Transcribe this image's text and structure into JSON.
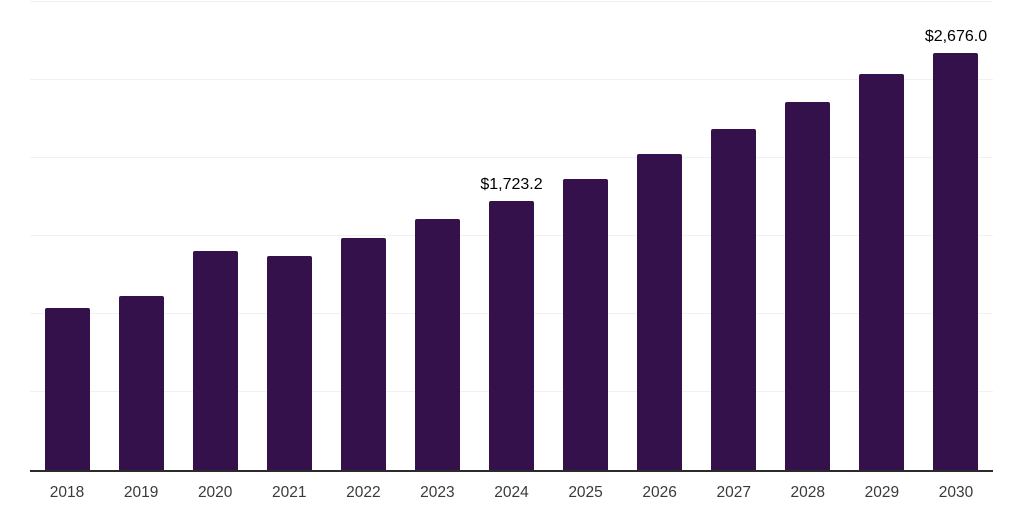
{
  "chart_data": {
    "type": "bar",
    "title": "",
    "xlabel": "",
    "ylabel": "",
    "categories": [
      "2018",
      "2019",
      "2020",
      "2021",
      "2022",
      "2023",
      "2024",
      "2025",
      "2026",
      "2027",
      "2028",
      "2029",
      "2030"
    ],
    "values": [
      1040,
      1116,
      1403,
      1373,
      1488,
      1610,
      1723.2,
      1864,
      2026,
      2189,
      2356,
      2541,
      2676.0
    ],
    "data_labels": [
      "",
      "",
      "",
      "",
      "",
      "",
      "$1,723.2",
      "",
      "",
      "",
      "",
      "",
      "$2,676.0"
    ],
    "ylim": [
      0,
      3000
    ],
    "gridline_step": 500,
    "grid": true,
    "legend": false,
    "bar_color": "#34114B",
    "grid_color": "#F1F1F1",
    "axis_color": "#2B2B2B",
    "label_color": "#000000",
    "tick_label_color": "#3A3A3A",
    "background_color": "#FFFFFF"
  }
}
